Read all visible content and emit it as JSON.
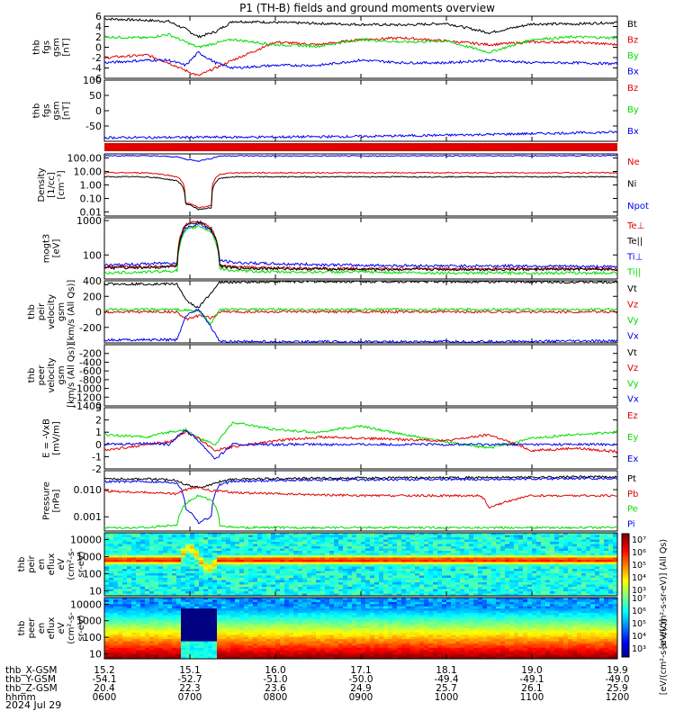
{
  "title": "P1 (TH-B) fields and ground moments overview",
  "date_label": "2024 Jul 29",
  "colors": {
    "black": "#000000",
    "red": "#e00000",
    "green": "#00dd00",
    "blue": "#0000ee"
  },
  "ephemeris": {
    "row_labels": [
      "thb_X-GSM",
      "thb_Y-GSM",
      "thb_Z-GSM",
      "hhmm"
    ],
    "columns": [
      [
        "15.2",
        "-54.1",
        "20.4",
        "0600"
      ],
      [
        "15.1",
        "-52.7",
        "22.3",
        "0700"
      ],
      [
        "16.0",
        "-51.0",
        "23.6",
        "0800"
      ],
      [
        "17.1",
        "-50.0",
        "24.9",
        "0900"
      ],
      [
        "18.1",
        "-49.4",
        "25.7",
        "1000"
      ],
      [
        "19.0",
        "-49.1",
        "26.1",
        "1100"
      ],
      [
        "19.9",
        "-49.0",
        "25.9",
        "1200"
      ]
    ]
  },
  "colorbar": {
    "ticks": [
      "10⁷",
      "10⁶",
      "10⁵",
      "10⁴",
      "10³"
    ],
    "units_label": "[eV/(cm²-s-sr-eV)] (All Qs)",
    "units_label_lower": "[eV/(cm²-s-sr-eV)]"
  },
  "chart_data": [
    {
      "panel": "fgs",
      "type": "line",
      "ylabel": [
        "thb",
        "fgs",
        "gsm",
        "[nT]"
      ],
      "ylim": [
        -6,
        6
      ],
      "yticks": [
        "6",
        "4",
        "2",
        "0",
        "-2",
        "-4",
        "-6"
      ],
      "legend": [
        "Bt",
        "Bz",
        "By",
        "Bx"
      ],
      "series_colors": [
        "black",
        "red",
        "green",
        "blue"
      ],
      "x_hours": [
        6.0,
        6.5,
        6.75,
        6.95,
        7.1,
        7.3,
        7.5,
        8.0,
        8.5,
        9.0,
        9.5,
        10.0,
        10.5,
        11.0,
        11.5,
        12.0
      ],
      "series": [
        {
          "name": "Bt",
          "values": [
            5.5,
            5.2,
            5.0,
            3.5,
            2.0,
            3.0,
            5.0,
            4.8,
            4.6,
            4.4,
            4.3,
            4.6,
            2.8,
            4.5,
            4.5,
            4.8
          ]
        },
        {
          "name": "Bz",
          "values": [
            -2.0,
            -1.5,
            -3.0,
            -4.5,
            -5.5,
            -4.0,
            -2.5,
            1.0,
            0.5,
            1.5,
            1.8,
            1.2,
            0.5,
            1.0,
            1.0,
            0.5
          ]
        },
        {
          "name": "By",
          "values": [
            2.0,
            1.8,
            2.5,
            1.0,
            0.0,
            0.8,
            1.5,
            0.5,
            0.2,
            1.5,
            1.0,
            1.2,
            -1.0,
            1.5,
            2.0,
            1.8
          ]
        },
        {
          "name": "Bx",
          "values": [
            -3.0,
            -2.5,
            -2.5,
            -3.5,
            -1.0,
            -3.0,
            -4.0,
            -3.5,
            -3.5,
            -2.5,
            -3.0,
            -3.0,
            -2.5,
            -3.0,
            -3.0,
            -3.2
          ]
        }
      ]
    },
    {
      "panel": "fgs_ssl",
      "type": "line",
      "ylabel": [
        "thb",
        "fgs",
        "gsm",
        "[nT]"
      ],
      "ylim": [
        -100,
        100
      ],
      "yticks": [
        "100",
        "50",
        "0",
        "-50"
      ],
      "legend": [
        "Bz",
        "By",
        "Bx"
      ],
      "series_colors": [
        "red",
        "green",
        "blue"
      ],
      "x_hours": [
        6.0,
        7.0,
        8.0,
        9.0,
        10.0,
        11.0,
        12.0
      ],
      "series": [
        {
          "name": "Bx",
          "values": [
            -88,
            -87,
            -86,
            -84,
            -80,
            -75,
            -70
          ]
        }
      ]
    },
    {
      "panel": "density",
      "type": "line",
      "ylog": true,
      "ylabel": [
        "Density",
        "[1/cc]",
        "[cm⁻³]"
      ],
      "ylim": [
        0.005,
        200
      ],
      "yticks": [
        "100.00",
        "10.00",
        "1.00",
        "0.10",
        "0.01"
      ],
      "legend": [
        "Ne",
        "Ni",
        "Npot"
      ],
      "series_colors": [
        "red",
        "black",
        "blue"
      ],
      "x_hours": [
        6.0,
        6.5,
        6.85,
        6.95,
        7.1,
        7.25,
        7.35,
        7.5,
        8.0,
        9.0,
        10.0,
        11.0,
        12.0
      ],
      "series": [
        {
          "name": "Npot",
          "values": [
            150,
            145,
            120,
            80,
            60,
            90,
            140,
            145,
            140,
            140,
            145,
            145,
            150
          ]
        },
        {
          "name": "Ne",
          "values": [
            8,
            8,
            4,
            0.05,
            0.02,
            0.03,
            6,
            8,
            8,
            8,
            8,
            8,
            8
          ]
        },
        {
          "name": "Ni",
          "values": [
            4,
            4,
            2,
            0.04,
            0.015,
            0.02,
            3,
            4,
            4,
            4,
            4,
            4,
            4
          ]
        }
      ]
    },
    {
      "panel": "temperature",
      "type": "line",
      "ylog": true,
      "ylabel": [
        "mogt3",
        "[eV]"
      ],
      "ylim": [
        20,
        1200
      ],
      "yticks": [
        "1000",
        "100"
      ],
      "legend": [
        "Te⊥",
        "Te||",
        "Ti⊥",
        "Ti||"
      ],
      "series_colors": [
        "red",
        "black",
        "blue",
        "green"
      ],
      "x_hours": [
        6.0,
        6.5,
        6.85,
        6.95,
        7.1,
        7.25,
        7.35,
        7.5,
        8.0,
        9.0,
        10.0,
        11.0,
        12.0
      ],
      "series": [
        {
          "name": "Ti⊥",
          "values": [
            50,
            55,
            60,
            600,
            800,
            500,
            70,
            60,
            55,
            50,
            48,
            48,
            45
          ]
        },
        {
          "name": "Ti||",
          "values": [
            30,
            32,
            35,
            500,
            700,
            450,
            40,
            35,
            32,
            32,
            30,
            30,
            30
          ]
        },
        {
          "name": "Te⊥",
          "values": [
            45,
            45,
            50,
            800,
            950,
            600,
            50,
            45,
            42,
            40,
            40,
            40,
            40
          ]
        },
        {
          "name": "Te||",
          "values": [
            42,
            42,
            48,
            700,
            900,
            550,
            48,
            42,
            40,
            38,
            38,
            38,
            38
          ]
        }
      ]
    },
    {
      "panel": "peir_velocity",
      "type": "line",
      "ylabel": [
        "thb",
        "peir",
        "velocity",
        "gsm",
        "[km/s (All Qs)]"
      ],
      "ylim": [
        -400,
        400
      ],
      "yticks": [
        "400",
        "200",
        "0",
        "-200"
      ],
      "legend": [
        "Vt",
        "Vz",
        "Vy",
        "Vx"
      ],
      "series_colors": [
        "black",
        "red",
        "green",
        "blue"
      ],
      "x_hours": [
        6.0,
        6.5,
        6.85,
        6.95,
        7.1,
        7.25,
        7.35,
        7.5,
        8.0,
        9.0,
        10.0,
        11.0,
        12.0
      ],
      "series": [
        {
          "name": "Vt",
          "values": [
            360,
            360,
            360,
            150,
            50,
            250,
            380,
            380,
            390,
            390,
            390,
            385,
            380
          ]
        },
        {
          "name": "Vz",
          "values": [
            0,
            0,
            0,
            -100,
            -50,
            -80,
            0,
            0,
            0,
            0,
            0,
            0,
            0
          ]
        },
        {
          "name": "Vy",
          "values": [
            30,
            30,
            30,
            20,
            10,
            -150,
            30,
            30,
            30,
            30,
            30,
            30,
            30
          ]
        },
        {
          "name": "Vx",
          "values": [
            -360,
            -360,
            -360,
            -50,
            40,
            -200,
            -380,
            -380,
            -385,
            -385,
            -385,
            -380,
            -375
          ]
        }
      ]
    },
    {
      "panel": "peer_velocity",
      "type": "line",
      "ylabel": [
        "thb",
        "peer",
        "velocity",
        "gsm",
        "[km/s (All Qs)]"
      ],
      "ylim": [
        -1400,
        0
      ],
      "yticks": [
        "-200",
        "-400",
        "-600",
        "-800",
        "-1000",
        "-1200",
        "-1400"
      ],
      "legend": [
        "Vt",
        "Vz",
        "Vy",
        "Vx"
      ],
      "series_colors": [
        "black",
        "red",
        "green",
        "blue"
      ],
      "series": []
    },
    {
      "panel": "efield",
      "type": "line",
      "ylabel": [
        "E = -VxB",
        "[mV/m]"
      ],
      "ylim": [
        -2,
        3
      ],
      "yticks": [
        "3",
        "2",
        "1",
        "0",
        "-1",
        "-2"
      ],
      "legend": [
        "Ez",
        "Ey",
        "Ex"
      ],
      "series_colors": [
        "red",
        "green",
        "blue"
      ],
      "x_hours": [
        6.0,
        6.5,
        6.75,
        6.95,
        7.1,
        7.3,
        7.5,
        8.0,
        8.5,
        9.0,
        9.5,
        10.0,
        10.5,
        11.0,
        11.5,
        12.0
      ],
      "series": [
        {
          "name": "Ey",
          "values": [
            0.8,
            0.6,
            1.0,
            1.2,
            0.5,
            0.0,
            1.8,
            1.2,
            1.0,
            1.5,
            0.8,
            0.2,
            -0.3,
            0.5,
            0.8,
            1.0
          ]
        },
        {
          "name": "Ez",
          "values": [
            -0.5,
            0.0,
            0.2,
            1.0,
            0.5,
            -0.5,
            -0.2,
            0.3,
            0.6,
            0.5,
            0.4,
            0.3,
            0.8,
            -0.5,
            -0.3,
            -0.6
          ]
        },
        {
          "name": "Ex",
          "values": [
            0.0,
            0.1,
            0.0,
            1.2,
            0.3,
            -1.2,
            0.0,
            0.0,
            0.0,
            0.0,
            0.0,
            0.0,
            0.0,
            0.0,
            0.0,
            0.0
          ]
        }
      ]
    },
    {
      "panel": "pressure",
      "type": "line",
      "ylog": true,
      "ylabel": [
        "Pressure",
        "[nPa]"
      ],
      "ylim": [
        0.0003,
        0.05
      ],
      "yticks": [
        "0.010",
        "0.001"
      ],
      "legend": [
        "Pt",
        "Pb",
        "Pe",
        "Pi"
      ],
      "series_colors": [
        "black",
        "red",
        "green",
        "blue"
      ],
      "x_hours": [
        6.0,
        6.5,
        6.85,
        6.95,
        7.1,
        7.25,
        7.35,
        7.5,
        8.0,
        9.0,
        10.0,
        10.4,
        10.5,
        11.0,
        12.0
      ],
      "series": [
        {
          "name": "Pt",
          "values": [
            0.025,
            0.025,
            0.022,
            0.015,
            0.012,
            0.015,
            0.02,
            0.024,
            0.026,
            0.027,
            0.028,
            0.028,
            0.028,
            0.029,
            0.03
          ]
        },
        {
          "name": "Pi",
          "values": [
            0.02,
            0.02,
            0.018,
            0.002,
            0.0006,
            0.001,
            0.015,
            0.02,
            0.022,
            0.023,
            0.024,
            0.024,
            0.024,
            0.025,
            0.026
          ]
        },
        {
          "name": "Pb",
          "values": [
            0.009,
            0.008,
            0.007,
            0.01,
            0.012,
            0.009,
            0.009,
            0.008,
            0.007,
            0.006,
            0.006,
            0.006,
            0.002,
            0.006,
            0.006
          ]
        },
        {
          "name": "Pe",
          "values": [
            0.0004,
            0.0004,
            0.0005,
            0.003,
            0.006,
            0.004,
            0.0005,
            0.0004,
            0.0004,
            0.0004,
            0.0004,
            0.0004,
            0.0004,
            0.0004,
            0.0004
          ]
        }
      ]
    },
    {
      "panel": "peir_spectrogram",
      "type": "heatmap",
      "ylog": true,
      "ylabel": [
        "thb",
        "peir",
        "en",
        "eflux",
        "eV",
        "(cm²-s-",
        "sr-eV)"
      ],
      "ylim": [
        5,
        25000
      ],
      "yticks": [
        "10000",
        "1000",
        "100",
        "10"
      ]
    },
    {
      "panel": "peer_spectrogram",
      "type": "heatmap",
      "ylog": true,
      "ylabel": [
        "thb",
        "peer",
        "en",
        "eflux",
        "eV",
        "(cm²-s-",
        "sr-eV)"
      ],
      "ylim": [
        5,
        25000
      ],
      "yticks": [
        "10000",
        "1000",
        "100",
        "10"
      ]
    }
  ]
}
